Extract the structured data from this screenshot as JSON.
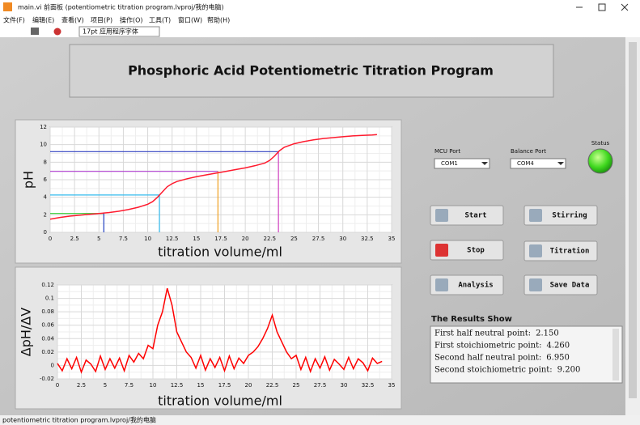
{
  "window": {
    "title": "main.vi 前面板 (potentiometric titration program.lvproj/我的电脑)",
    "menu": [
      "文件(F)",
      "编辑(E)",
      "查看(V)",
      "项目(P)",
      "操作(O)",
      "工具(T)",
      "窗口(W)",
      "帮助(H)"
    ],
    "font_select": "17pt 应用程序字体",
    "status_bar": "potentiometric titration program.lvproj/我的电脑"
  },
  "panel_title": "Phosphoric Acid Potentiometric Titration Program",
  "chart_data": [
    {
      "type": "line",
      "ylabel": "pH",
      "xlabel": "titration volume/ml",
      "color": "#ff1a2e",
      "x": [
        0,
        1,
        2,
        3,
        4,
        5,
        6,
        7,
        8,
        9,
        10,
        10.5,
        11,
        11.5,
        12,
        12.5,
        13,
        14,
        15,
        16,
        17,
        18,
        19,
        20,
        21,
        22,
        22.5,
        23,
        23.5,
        24,
        25,
        26,
        27,
        28,
        29,
        30,
        31,
        32,
        33,
        33.5
      ],
      "values": [
        1.5,
        1.7,
        1.85,
        1.95,
        2.05,
        2.15,
        2.25,
        2.4,
        2.6,
        2.85,
        3.2,
        3.5,
        4.0,
        4.6,
        5.2,
        5.55,
        5.8,
        6.1,
        6.35,
        6.55,
        6.75,
        6.95,
        7.15,
        7.35,
        7.6,
        7.9,
        8.2,
        8.7,
        9.3,
        9.7,
        10.1,
        10.35,
        10.55,
        10.7,
        10.8,
        10.9,
        11.0,
        11.05,
        11.1,
        11.15
      ],
      "markers": [
        {
          "x": 5.5,
          "y": 2.15,
          "h_color": "#33cc33",
          "v_color": "#2040c0"
        },
        {
          "x": 11.2,
          "y": 4.26,
          "h_color": "#33bbee",
          "v_color": "#33bbee"
        },
        {
          "x": 17.2,
          "y": 6.95,
          "h_color": "#b040d0",
          "v_color": "#f0a020"
        },
        {
          "x": 23.4,
          "y": 9.2,
          "h_color": "#3040c0",
          "v_color": "#d040c0"
        }
      ],
      "xlim": [
        0,
        35
      ],
      "xticks": [
        0,
        2.5,
        5,
        7.5,
        10,
        12.5,
        15,
        17.5,
        20,
        22.5,
        25,
        27.5,
        30,
        32.5,
        35
      ],
      "ylim": [
        0,
        12
      ],
      "yticks": [
        0,
        2,
        4,
        6,
        8,
        10,
        12
      ],
      "grid": true
    },
    {
      "type": "line",
      "ylabel": "ΔpH/ΔV",
      "xlabel": "titration volume/ml",
      "color": "#ff0000",
      "x": [
        0,
        0.5,
        1,
        1.5,
        2,
        2.5,
        3,
        3.5,
        4,
        4.5,
        5,
        5.5,
        6,
        6.5,
        7,
        7.5,
        8,
        8.5,
        9,
        9.5,
        10,
        10.5,
        11,
        11.5,
        12,
        12.5,
        13,
        13.5,
        14,
        14.5,
        15,
        15.5,
        16,
        16.5,
        17,
        17.5,
        18,
        18.5,
        19,
        19.5,
        20,
        20.5,
        21,
        21.5,
        22,
        22.5,
        23,
        23.5,
        24,
        24.5,
        25,
        25.5,
        26,
        26.5,
        27,
        27.5,
        28,
        28.5,
        29,
        29.5,
        30,
        30.5,
        31,
        31.5,
        32,
        32.5,
        33,
        33.5,
        34
      ],
      "values": [
        0.003,
        -0.008,
        0.01,
        -0.005,
        0.012,
        -0.01,
        0.008,
        0.002,
        -0.009,
        0.014,
        -0.006,
        0.01,
        -0.004,
        0.011,
        -0.008,
        0.015,
        0.005,
        0.018,
        0.01,
        0.03,
        0.025,
        0.06,
        0.08,
        0.115,
        0.09,
        0.05,
        0.035,
        0.02,
        0.012,
        -0.004,
        0.015,
        -0.007,
        0.01,
        -0.003,
        0.012,
        -0.008,
        0.014,
        -0.005,
        0.011,
        0.003,
        0.015,
        0.02,
        0.028,
        0.04,
        0.055,
        0.075,
        0.05,
        0.035,
        0.02,
        0.01,
        0.015,
        -0.006,
        0.012,
        -0.009,
        0.01,
        -0.004,
        0.013,
        -0.007,
        0.009,
        0.002,
        -0.006,
        0.012,
        -0.005,
        0.01,
        0.004,
        -0.008,
        0.011,
        0.003,
        0.006
      ],
      "xlim": [
        0,
        35
      ],
      "xticks": [
        0,
        2.5,
        5,
        7.5,
        10,
        12.5,
        15,
        17.5,
        20,
        22.5,
        25,
        27.5,
        30,
        32.5,
        35
      ],
      "ylim": [
        -0.02,
        0.12
      ],
      "yticks": [
        -0.02,
        0,
        0.02,
        0.04,
        0.06,
        0.08,
        0.1,
        0.12
      ],
      "grid": true
    }
  ],
  "ports": [
    {
      "label": "MCU Port",
      "value": "COM1"
    },
    {
      "label": "Balance Port",
      "value": "COM4"
    }
  ],
  "status": {
    "label": "Status"
  },
  "buttons": [
    "Start",
    "Stirring",
    "Stop",
    "Titration",
    "Analysis",
    "Save Data"
  ],
  "results": {
    "title": "The Results Show",
    "lines": [
      {
        "label": "First half neutral point:",
        "value": "2.150"
      },
      {
        "label": "First stoichiometric point:",
        "value": "4.260"
      },
      {
        "label": "Second half neutral point:",
        "value": "6.950"
      },
      {
        "label": "Second stoichiometric point:",
        "value": "9.200"
      }
    ]
  }
}
